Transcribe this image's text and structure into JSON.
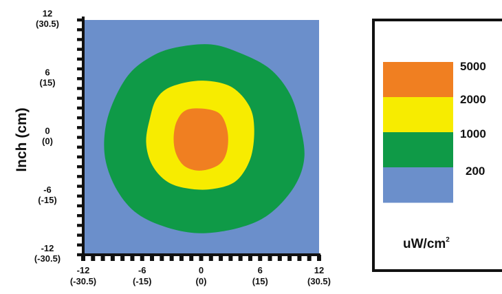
{
  "chart_data": {
    "type": "heatmap",
    "title": "",
    "ylabel": "Inch (cm)",
    "xlabel": "",
    "xlim": [
      -12,
      12
    ],
    "ylim": [
      -12,
      12
    ],
    "x_ticks": [
      {
        "inch": "-12",
        "cm": "(-30.5)",
        "value": -12
      },
      {
        "inch": "-6",
        "cm": "(-15)",
        "value": -6
      },
      {
        "inch": "0",
        "cm": "(0)",
        "value": 0
      },
      {
        "inch": "6",
        "cm": "(15)",
        "value": 6
      },
      {
        "inch": "12",
        "cm": "(30.5)",
        "value": 12
      }
    ],
    "y_ticks": [
      {
        "inch": "12",
        "cm": "(30.5)",
        "value": 12
      },
      {
        "inch": "6",
        "cm": "(15)",
        "value": 6
      },
      {
        "inch": "0",
        "cm": "(0)",
        "value": 0
      },
      {
        "inch": "-6",
        "cm": "(-15)",
        "value": -6
      },
      {
        "inch": "-12",
        "cm": "(-30.5)",
        "value": -12
      }
    ],
    "background_level": {
      "label": "200",
      "color": "#6b8fcb"
    },
    "contours": [
      {
        "level": "1000",
        "color": "#0f9a47",
        "outline": [
          [
            -2.5,
            9.2
          ],
          [
            1,
            9.5
          ],
          [
            4,
            8.6
          ],
          [
            7,
            7
          ],
          [
            9,
            4.5
          ],
          [
            10,
            1.5
          ],
          [
            10.5,
            -2
          ],
          [
            9.5,
            -5
          ],
          [
            7,
            -7.8
          ],
          [
            4,
            -9.2
          ],
          [
            0,
            -9.8
          ],
          [
            -3.5,
            -9.2
          ],
          [
            -6.5,
            -7.8
          ],
          [
            -8.5,
            -5.5
          ],
          [
            -9.7,
            -2.5
          ],
          [
            -9.8,
            0.5
          ],
          [
            -9,
            3.5
          ],
          [
            -7.3,
            6.5
          ],
          [
            -5,
            8.3
          ]
        ]
      },
      {
        "level": "2000",
        "color": "#f7ec00",
        "outline": [
          [
            -3,
            5.2
          ],
          [
            0,
            5.8
          ],
          [
            3,
            5.2
          ],
          [
            4.9,
            3.2
          ],
          [
            5.4,
            0.8
          ],
          [
            5,
            -2.2
          ],
          [
            3.5,
            -4.5
          ],
          [
            1,
            -5.3
          ],
          [
            -1.5,
            -5.2
          ],
          [
            -3.5,
            -4.5
          ],
          [
            -5,
            -2.8
          ],
          [
            -5.6,
            -0.5
          ],
          [
            -5.2,
            2
          ],
          [
            -4.5,
            4
          ]
        ]
      },
      {
        "level": "5000",
        "color": "#f07f21",
        "outline": [
          [
            -1.5,
            2.8
          ],
          [
            0.5,
            2.9
          ],
          [
            2,
            2.3
          ],
          [
            2.7,
            0.5
          ],
          [
            2.6,
            -1.5
          ],
          [
            1.8,
            -2.8
          ],
          [
            0,
            -3.4
          ],
          [
            -1.6,
            -3
          ],
          [
            -2.5,
            -1.8
          ],
          [
            -2.8,
            -0.2
          ],
          [
            -2.5,
            1.6
          ]
        ]
      }
    ],
    "legend": {
      "placement": "right",
      "entries": [
        {
          "label": "5000",
          "color": "#f07f21"
        },
        {
          "label": "2000",
          "color": "#f7ec00"
        },
        {
          "label": "1000",
          "color": "#0f9a47"
        },
        {
          "label": "200",
          "color": "#6b8fcb"
        }
      ],
      "unit": "uW/cm",
      "unit_exponent": "2"
    }
  }
}
